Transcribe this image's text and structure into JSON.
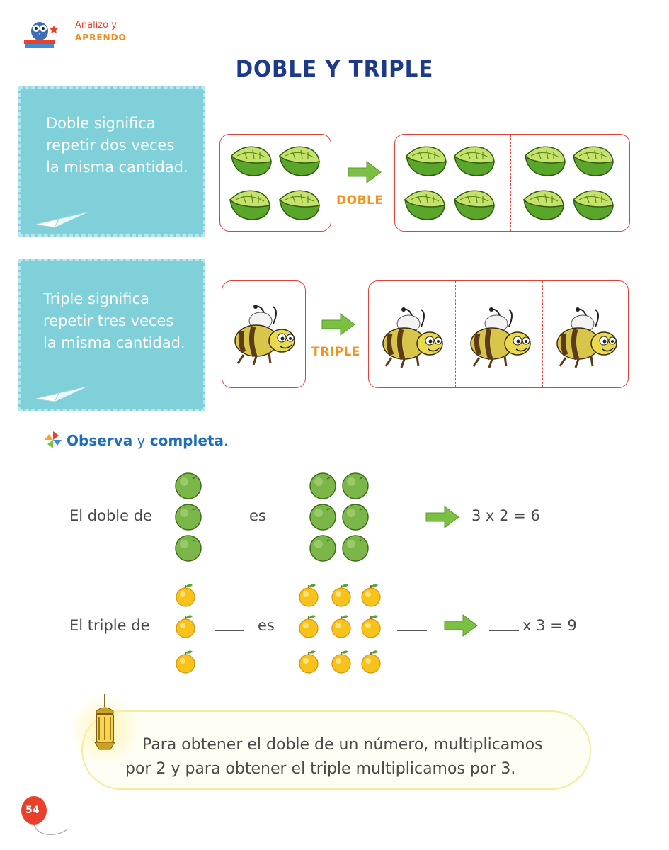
{
  "header": {
    "logo_line1": "Analizo y",
    "logo_line2": "APRENDO"
  },
  "title": "DOBLE Y TRIPLE",
  "doble_note": "Doble significa repetir dos veces la misma cantidad.",
  "triple_note": "Triple significa repetir tres veces la misma cantidad.",
  "doble_label": "DOBLE",
  "triple_label": "TRIPLE",
  "exercise": {
    "instruction_part1": "Observa",
    "instruction_part2": " y ",
    "instruction_part3": "completa",
    "instruction_part4": ".",
    "row1": {
      "prefix": "El doble de",
      "mid": "es",
      "equation": "3 x 2 = 6"
    },
    "row2": {
      "prefix": "El triple de",
      "mid": "es",
      "equation": "x 3 = 9"
    }
  },
  "tip": "Para obtener el doble de un número, multiplicamos por 2 y para obtener el triple multiplicamos por 3.",
  "page_number": "54",
  "colors": {
    "title": "#1d3a8a",
    "note_bg": "#7fd0d9",
    "frame": "#e2413a",
    "label": "#f2941b",
    "arrow": "#7bc043",
    "instruction": "#1f6fb8"
  }
}
